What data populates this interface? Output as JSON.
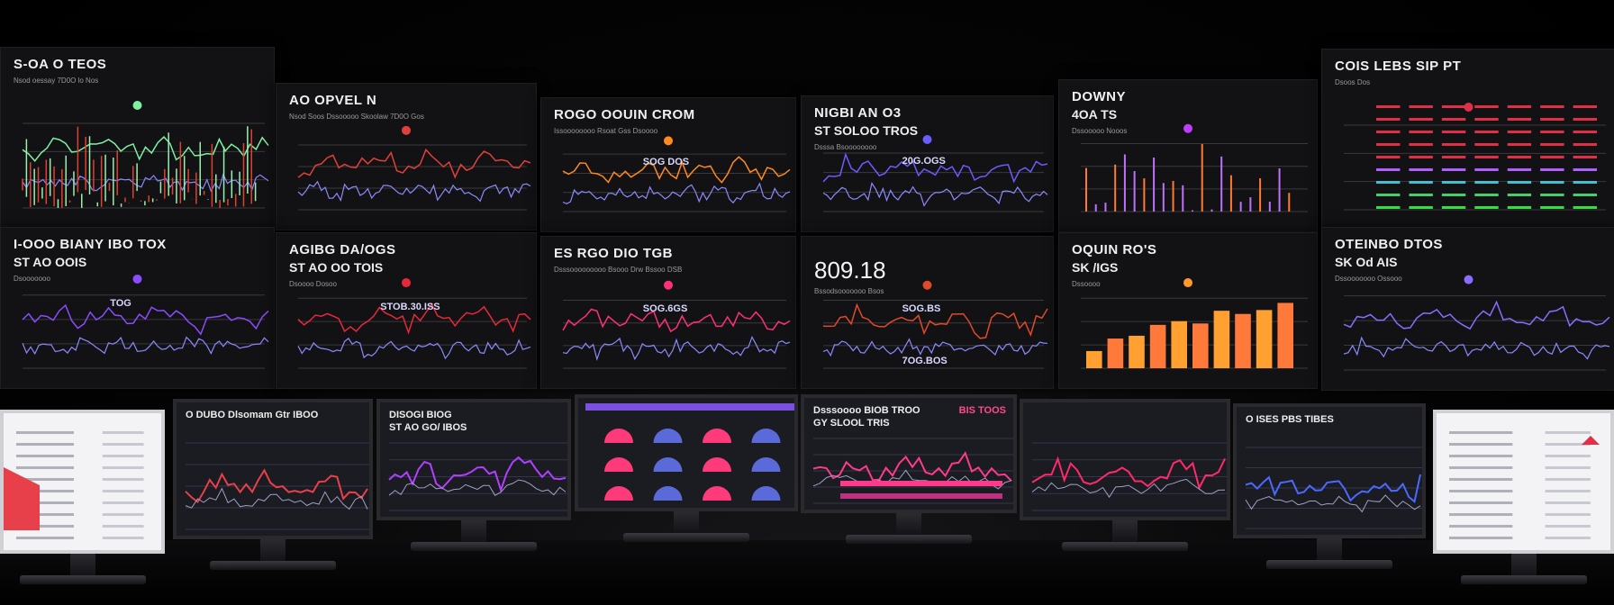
{
  "wall_top": [
    {
      "title": "S-OA O TEOS",
      "subtitle": "Nsod oessay 7D0O  lo  Nos",
      "accent": "#7ef0a0"
    },
    {
      "title": "AO OPVEL N",
      "subtitle": "Nsod  Soos  Dssooooo  Skoolaw  7D0O Gos",
      "accent": "#e0403a"
    },
    {
      "title": "ROGO OOUIN CROM",
      "subtitle": "Issoooooooo  Rsoat  Gss  Dsoooo",
      "label": "SOG DOS",
      "accent": "#ff8a1e"
    },
    {
      "title": "NIGBI AN O3",
      "title2": "ST SOLOO TROS",
      "subtitle": "Dsssa  Bsoooooooo",
      "label": "20G.OGS",
      "accent": "#6a5cff"
    },
    {
      "title": "DOWNY",
      "title2": "4OA TS",
      "subtitle": "Dssooooo Nooos",
      "accent": "#c03cff"
    },
    {
      "title": "COIS LEBS SIP PT",
      "subtitle": "Dsoos  Dos",
      "accent": "#e03048"
    }
  ],
  "wall_bottom": [
    {
      "title": "I-OOO BIANY IBO TOX",
      "title2": "ST AO OOIS",
      "subtitle": "Dsooooooo",
      "label": "TOG",
      "accent": "#8a4cff"
    },
    {
      "title": "AGIBG DA/OGS",
      "title2": "ST AO OO TOIS",
      "subtitle": "Dsoooo  Dosoo",
      "label": "STOB.30.ISS",
      "accent": "#e8283a"
    },
    {
      "title": "ES RGO DIO TGB",
      "subtitle": "Dsssooooooooo  Bsooo  Drw  Bssoo  DSB",
      "label": "SOG.6GS",
      "accent": "#ff2f7a"
    },
    {
      "title": "809.18",
      "subtitle": "Bssodsooooooo  Bsos",
      "label": "SOG.BS",
      "label2": "7OG.BOS",
      "accent": "#e04a2a"
    },
    {
      "title": "OQUIN RO'S",
      "title2": "SK /IGS",
      "subtitle": "Dssoooo",
      "accent": "#ff9a2a"
    },
    {
      "title": "OTEINBO DTOS",
      "title2": "SK Od AIS",
      "subtitle": "Dssooooooo  Ossooo",
      "accent": "#8a6cff"
    }
  ],
  "monitors": [
    {
      "title": "",
      "accent": "#e8404a"
    },
    {
      "title": "O DUBO Dlsomam Gtr IBOO",
      "accent": "#e8404a"
    },
    {
      "title": "DISOGI BIOG",
      "title2": "ST AO GO/ IBOS",
      "accent": "#b040ff"
    },
    {
      "title": "",
      "accent": "#ff3a7a"
    },
    {
      "title": "Dsssoooo BIOB TROO",
      "title2": "GY SLOOL TRIS",
      "badge": "BIS TOOS",
      "accent": "#ff3a8a"
    },
    {
      "title": "",
      "accent": "#ff2a6a"
    },
    {
      "title": "O ISES PBS TIBES",
      "accent": "#4a6aff"
    },
    {
      "title": "",
      "accent": "#e0304a"
    }
  ]
}
